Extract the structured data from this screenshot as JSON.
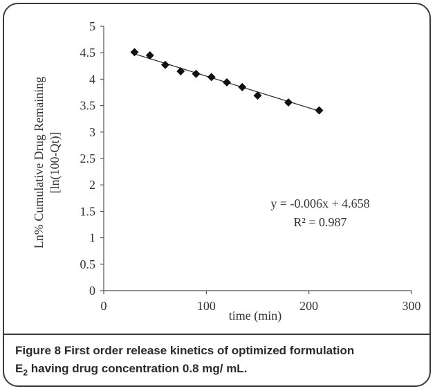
{
  "chart_data": {
    "type": "scatter",
    "xlabel": "time (min)",
    "ylabel_line1": "Ln% Cumulative Drug Remaining",
    "ylabel_line2": "[ln(100-Qt)]",
    "xlim": [
      0,
      300
    ],
    "ylim": [
      0,
      5
    ],
    "x_ticks": [
      "0",
      "100",
      "200",
      "300"
    ],
    "y_ticks": [
      "0",
      "0.5",
      "1",
      "1.5",
      "2",
      "2.5",
      "3",
      "3.5",
      "4",
      "4.5",
      "5"
    ],
    "grid": false,
    "legend": "none",
    "marker": "diamond",
    "points": [
      {
        "x": 30,
        "y": 4.51
      },
      {
        "x": 45,
        "y": 4.45
      },
      {
        "x": 60,
        "y": 4.27
      },
      {
        "x": 75,
        "y": 4.15
      },
      {
        "x": 90,
        "y": 4.1
      },
      {
        "x": 105,
        "y": 4.04
      },
      {
        "x": 120,
        "y": 3.94
      },
      {
        "x": 135,
        "y": 3.85
      },
      {
        "x": 150,
        "y": 3.69
      },
      {
        "x": 180,
        "y": 3.56
      },
      {
        "x": 210,
        "y": 3.41
      }
    ],
    "trendline": {
      "slope": -0.006,
      "intercept": 4.658,
      "x_from": 30,
      "x_to": 210
    },
    "equation": "y = -0.006x + 4.658",
    "r_squared": "R² = 0.987"
  },
  "caption": {
    "label": "Figure 8",
    "text_line1": "First order release kinetics of optimized formulation",
    "subject_base": "E",
    "subject_sub": "2",
    "text_line2": "having drug concentration 0.8 mg/ mL."
  }
}
